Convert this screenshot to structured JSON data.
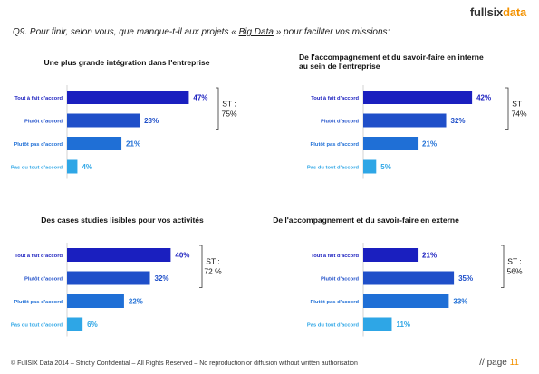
{
  "logo": {
    "part1": "fullsix",
    "part2": "data"
  },
  "question": {
    "prefix": "Q9. Pour finir, selon vous, que manque-t-il  aux projets  « ",
    "underlined": "Big Data",
    "suffix": " » pour faciliter vos missions:"
  },
  "colors": [
    "#1a1fbf",
    "#1f4fc9",
    "#1f6fd6",
    "#2ea6e6"
  ],
  "chart_data": [
    {
      "type": "bar",
      "orientation": "horizontal",
      "title": [
        "Une plus grande intégration dans l'entreprise"
      ],
      "categories": [
        "Tout à fait d'accord",
        "Plutôt d'accord",
        "Plutôt pas d'accord",
        "Pas du tout d'accord"
      ],
      "values": [
        47,
        28,
        21,
        4
      ],
      "labels": [
        "47%",
        "28%",
        "21%",
        "4%"
      ],
      "st_label": "ST :",
      "st_value": "75%"
    },
    {
      "type": "bar",
      "orientation": "horizontal",
      "title": [
        "De l'accompagnement et du savoir-faire en interne",
        "au sein de l'entreprise"
      ],
      "categories": [
        "Tout à fait d'accord",
        "Plutôt d'accord",
        "Plutôt pas d'accord",
        "Pas du tout d'accord"
      ],
      "values": [
        42,
        32,
        21,
        5
      ],
      "labels": [
        "42%",
        "32%",
        "21%",
        "5%"
      ],
      "st_label": "ST :",
      "st_value": "74%"
    },
    {
      "type": "bar",
      "orientation": "horizontal",
      "title": [
        "Des cases studies lisibles pour vos activités"
      ],
      "categories": [
        "Tout à fait d'accord",
        "Plutôt d'accord",
        "Plutôt pas d'accord",
        "Pas du tout d'accord"
      ],
      "values": [
        40,
        32,
        22,
        6
      ],
      "labels": [
        "40%",
        "32%",
        "22%",
        "6%"
      ],
      "st_label": "ST :",
      "st_value": "72 %"
    },
    {
      "type": "bar",
      "orientation": "horizontal",
      "title": [
        "De l'accompagnement et du savoir-faire en externe"
      ],
      "categories": [
        "Tout à fait d'accord",
        "Plutôt d'accord",
        "Plutôt pas d'accord",
        "Pas du tout d'accord"
      ],
      "values": [
        21,
        35,
        33,
        11
      ],
      "labels": [
        "21%",
        "35%",
        "33%",
        "11%"
      ],
      "st_label": "ST :",
      "st_value": "56%"
    }
  ],
  "footer": "© FullSIX Data 2014 – Strictly Confidential – All Rights Reserved – No reproduction or diffusion without written authorisation",
  "page": {
    "label": "// page ",
    "number": "11"
  }
}
